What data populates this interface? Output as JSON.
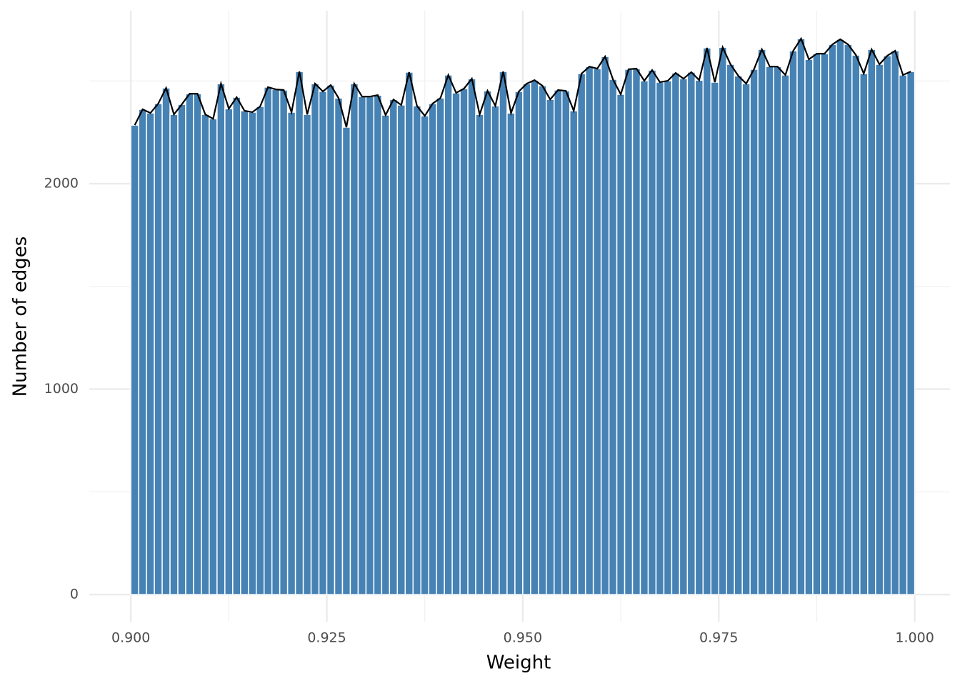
{
  "chart_data": {
    "type": "histogram",
    "x_label": "Weight",
    "y_label": "Number of edges",
    "bins": [
      0.9,
      0.901,
      0.902,
      0.903,
      0.904,
      0.905,
      0.906,
      0.907,
      0.908,
      0.909,
      0.91,
      0.911,
      0.912,
      0.913,
      0.914,
      0.915,
      0.916,
      0.917,
      0.918,
      0.919,
      0.92,
      0.921,
      0.922,
      0.923,
      0.924,
      0.925,
      0.926,
      0.927,
      0.928,
      0.929,
      0.93,
      0.931,
      0.932,
      0.933,
      0.934,
      0.935,
      0.936,
      0.937,
      0.938,
      0.939,
      0.94,
      0.941,
      0.942,
      0.943,
      0.944,
      0.945,
      0.946,
      0.947,
      0.948,
      0.949,
      0.95,
      0.951,
      0.952,
      0.953,
      0.954,
      0.955,
      0.956,
      0.957,
      0.958,
      0.959,
      0.96,
      0.961,
      0.962,
      0.963,
      0.964,
      0.965,
      0.966,
      0.967,
      0.968,
      0.969,
      0.97,
      0.971,
      0.972,
      0.973,
      0.974,
      0.975,
      0.976,
      0.977,
      0.978,
      0.979,
      0.98,
      0.981,
      0.982,
      0.983,
      0.984,
      0.985,
      0.986,
      0.987,
      0.988,
      0.989,
      0.99,
      0.991,
      0.992,
      0.993,
      0.994,
      0.995,
      0.996,
      0.997,
      0.998,
      0.999,
      1.0
    ],
    "values": [
      2285,
      2362,
      2344,
      2390,
      2466,
      2337,
      2386,
      2438,
      2438,
      2337,
      2316,
      2487,
      2365,
      2421,
      2355,
      2348,
      2376,
      2470,
      2459,
      2456,
      2348,
      2546,
      2337,
      2487,
      2449,
      2480,
      2417,
      2275,
      2487,
      2424,
      2424,
      2431,
      2334,
      2410,
      2383,
      2543,
      2379,
      2330,
      2390,
      2417,
      2529,
      2442,
      2463,
      2511,
      2337,
      2452,
      2379,
      2546,
      2344,
      2449,
      2487,
      2504,
      2477,
      2410,
      2456,
      2452,
      2355,
      2536,
      2570,
      2560,
      2619,
      2508,
      2435,
      2557,
      2560,
      2501,
      2553,
      2494,
      2501,
      2539,
      2511,
      2543,
      2504,
      2661,
      2494,
      2664,
      2581,
      2525,
      2487,
      2557,
      2654,
      2570,
      2570,
      2529,
      2647,
      2706,
      2605,
      2633,
      2633,
      2678,
      2703,
      2678,
      2626,
      2536,
      2654,
      2581,
      2623,
      2647,
      2529,
      2546
    ],
    "color": "#4682b4",
    "line_color": "#000000",
    "xlim": [
      0.8947,
      1.0045
    ],
    "ylim": [
      -132,
      2842
    ],
    "xticks": [
      {
        "value": 0.9,
        "label": "0.900"
      },
      {
        "value": 0.925,
        "label": "0.925"
      },
      {
        "value": 0.95,
        "label": "0.950"
      },
      {
        "value": 0.975,
        "label": "0.975"
      },
      {
        "value": 1.0,
        "label": "1.000"
      }
    ],
    "yticks": [
      0,
      1000,
      2000
    ],
    "grid": true
  }
}
